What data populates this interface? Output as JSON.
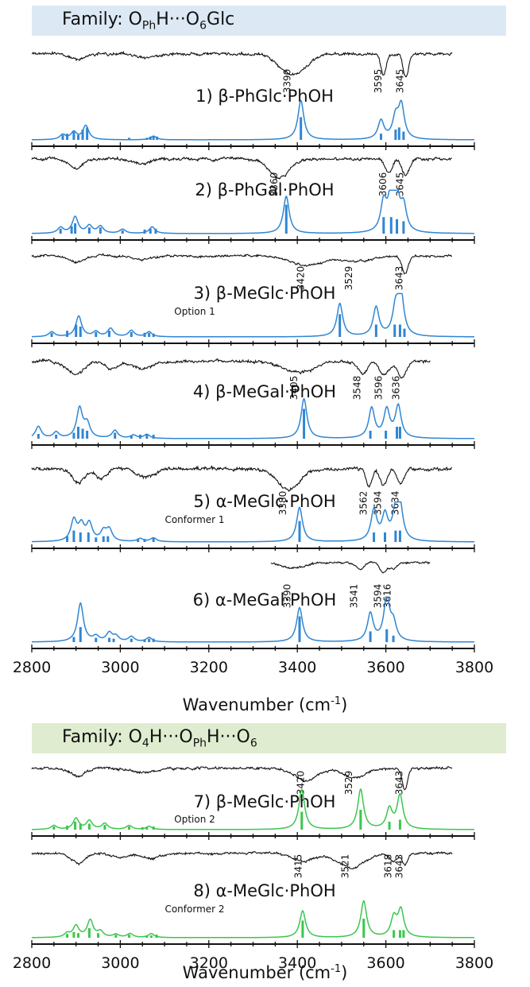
{
  "families": [
    {
      "label_prefix": "Family: ",
      "label_html": "O<sub>Ph</sub>H···O<sub>6</sub>Glc",
      "color": "#dce9f5"
    },
    {
      "label_prefix": "Family: ",
      "label_html": "O<sub>4</sub>H···O<sub>Ph</sub>H···O<sub>6</sub>",
      "color": "#dfeccf"
    }
  ],
  "axis": {
    "xlabel_text": "Wavenumber (cm",
    "xlabel_sup": "-1",
    "xlabel_close": ")",
    "xlim": [
      2800,
      3800
    ],
    "ticks": [
      2800,
      3000,
      3200,
      3400,
      3600,
      3800
    ]
  },
  "chart_data": {
    "type": "line",
    "xlabel": "Wavenumber (cm-1)",
    "xlim": [
      2800,
      3800
    ],
    "colors": {
      "experiment": "#111111",
      "family1_calc": "#2f86d4",
      "family2_calc": "#3cc64d"
    },
    "panels": [
      {
        "label": "1) β-PhGlc·PhOH",
        "note": "",
        "family": 1,
        "exp_range": [
          2800,
          3750
        ],
        "exp_bands": [
          [
            2900,
            0.25,
            15
          ],
          [
            3060,
            0.15,
            20
          ],
          [
            3390,
            0.85,
            30
          ],
          [
            3595,
            0.85,
            6
          ],
          [
            3645,
            1.0,
            6
          ]
        ],
        "exp_labels": [
          3390,
          3595,
          3645
        ],
        "calc_sticks": [
          [
            2870,
            0.12
          ],
          [
            2880,
            0.15
          ],
          [
            2895,
            0.2
          ],
          [
            2905,
            0.12
          ],
          [
            2915,
            0.25
          ],
          [
            2925,
            0.3
          ],
          [
            3020,
            0.05
          ],
          [
            3060,
            0.05
          ],
          [
            3068,
            0.08
          ],
          [
            3075,
            0.1
          ],
          [
            3083,
            0.08
          ],
          [
            3408,
            0.55
          ],
          [
            3589,
            0.15
          ],
          [
            3622,
            0.25
          ],
          [
            3630,
            0.3
          ],
          [
            3640,
            0.2
          ]
        ],
        "calc_peaks": [
          [
            2870,
            0.12
          ],
          [
            2895,
            0.18
          ],
          [
            2922,
            0.34
          ],
          [
            3075,
            0.09
          ],
          [
            3408,
            0.95
          ],
          [
            3589,
            0.45
          ],
          [
            3622,
            0.5
          ],
          [
            3635,
            0.8
          ]
        ]
      },
      {
        "label": "2) β-PhGal·PhOH",
        "note": "",
        "family": 1,
        "exp_range": [
          2800,
          3750
        ],
        "exp_bands": [
          [
            2900,
            0.4,
            15
          ],
          [
            3050,
            0.2,
            20
          ],
          [
            3360,
            0.8,
            22
          ],
          [
            3606,
            0.6,
            8
          ],
          [
            3645,
            0.7,
            8
          ]
        ],
        "exp_labels": [
          3360,
          3606,
          3645
        ],
        "calc_sticks": [
          [
            2865,
            0.12
          ],
          [
            2890,
            0.18
          ],
          [
            2898,
            0.25
          ],
          [
            2930,
            0.15
          ],
          [
            2955,
            0.15
          ],
          [
            3005,
            0.08
          ],
          [
            3055,
            0.1
          ],
          [
            3068,
            0.12
          ],
          [
            3080,
            0.12
          ],
          [
            3375,
            0.7
          ],
          [
            3595,
            0.4
          ],
          [
            3612,
            0.4
          ],
          [
            3625,
            0.35
          ],
          [
            3640,
            0.3
          ]
        ],
        "calc_peaks": [
          [
            2865,
            0.14
          ],
          [
            2898,
            0.4
          ],
          [
            2930,
            0.18
          ],
          [
            2955,
            0.17
          ],
          [
            3005,
            0.1
          ],
          [
            3072,
            0.16
          ],
          [
            3375,
            0.9
          ],
          [
            3595,
            0.7
          ],
          [
            3612,
            0.9
          ],
          [
            3625,
            0.75
          ],
          [
            3640,
            0.6
          ]
        ]
      },
      {
        "label": "3) β-MeGlc·PhOH",
        "note": "Option 1",
        "family": 1,
        "exp_range": [
          2800,
          3750
        ],
        "exp_bands": [
          [
            2900,
            0.35,
            18
          ],
          [
            3050,
            0.2,
            25
          ],
          [
            3420,
            0.55,
            35
          ],
          [
            3529,
            0.35,
            35
          ],
          [
            3643,
            1.0,
            7
          ]
        ],
        "exp_labels": [
          3420,
          3529,
          3643
        ],
        "calc_sticks": [
          [
            2845,
            0.1
          ],
          [
            2880,
            0.15
          ],
          [
            2900,
            0.3
          ],
          [
            2910,
            0.25
          ],
          [
            2945,
            0.12
          ],
          [
            2975,
            0.15
          ],
          [
            3025,
            0.12
          ],
          [
            3055,
            0.1
          ],
          [
            3065,
            0.1
          ],
          [
            3075,
            0.08
          ],
          [
            3496,
            0.55
          ],
          [
            3578,
            0.3
          ],
          [
            3620,
            0.3
          ],
          [
            3632,
            0.3
          ],
          [
            3642,
            0.2
          ]
        ],
        "calc_peaks": [
          [
            2845,
            0.12
          ],
          [
            2906,
            0.5
          ],
          [
            2945,
            0.12
          ],
          [
            2978,
            0.2
          ],
          [
            3025,
            0.15
          ],
          [
            3065,
            0.12
          ],
          [
            3496,
            0.8
          ],
          [
            3578,
            0.7
          ],
          [
            3622,
            0.65
          ],
          [
            3634,
            1.0
          ]
        ]
      },
      {
        "label": "4) β-MeGal·PhOH",
        "note": "",
        "family": 1,
        "exp_range": [
          2800,
          3700
        ],
        "exp_bands": [
          [
            2900,
            0.5,
            20
          ],
          [
            2980,
            0.3,
            15
          ],
          [
            3050,
            0.3,
            20
          ],
          [
            3405,
            0.45,
            35
          ],
          [
            3548,
            0.5,
            10
          ],
          [
            3596,
            0.55,
            10
          ],
          [
            3636,
            0.65,
            10
          ]
        ],
        "exp_labels": [
          3405,
          3548,
          3596,
          3636
        ],
        "calc_sticks": [
          [
            2815,
            0.12
          ],
          [
            2855,
            0.1
          ],
          [
            2895,
            0.15
          ],
          [
            2905,
            0.3
          ],
          [
            2915,
            0.25
          ],
          [
            2925,
            0.2
          ],
          [
            2988,
            0.15
          ],
          [
            3025,
            0.08
          ],
          [
            3045,
            0.1
          ],
          [
            3060,
            0.1
          ],
          [
            3075,
            0.1
          ],
          [
            3415,
            0.75
          ],
          [
            3565,
            0.2
          ],
          [
            3600,
            0.2
          ],
          [
            3625,
            0.3
          ],
          [
            3632,
            0.3
          ]
        ],
        "calc_peaks": [
          [
            2815,
            0.3
          ],
          [
            2855,
            0.15
          ],
          [
            2908,
            0.75
          ],
          [
            2925,
            0.35
          ],
          [
            2988,
            0.2
          ],
          [
            3030,
            0.08
          ],
          [
            3060,
            0.1
          ],
          [
            3415,
            1.0
          ],
          [
            3568,
            0.75
          ],
          [
            3602,
            0.7
          ],
          [
            3628,
            0.8
          ]
        ]
      },
      {
        "label": "5) α-MeGlc·PhOH",
        "note": "Conformer 1",
        "family": 1,
        "exp_range": [
          2800,
          3750
        ],
        "exp_bands": [
          [
            2905,
            0.45,
            15
          ],
          [
            2955,
            0.35,
            12
          ],
          [
            3060,
            0.3,
            20
          ],
          [
            3380,
            0.75,
            25
          ],
          [
            3562,
            0.6,
            7
          ],
          [
            3594,
            0.55,
            8
          ],
          [
            3634,
            0.55,
            8
          ]
        ],
        "exp_labels": [
          3380,
          3562,
          3594,
          3634
        ],
        "calc_sticks": [
          [
            2880,
            0.15
          ],
          [
            2895,
            0.3
          ],
          [
            2910,
            0.25
          ],
          [
            2928,
            0.25
          ],
          [
            2945,
            0.12
          ],
          [
            2962,
            0.15
          ],
          [
            2972,
            0.15
          ],
          [
            3040,
            0.08
          ],
          [
            3055,
            0.08
          ],
          [
            3075,
            0.1
          ],
          [
            3405,
            0.55
          ],
          [
            3573,
            0.25
          ],
          [
            3598,
            0.25
          ],
          [
            3622,
            0.3
          ],
          [
            3632,
            0.3
          ]
        ],
        "calc_peaks": [
          [
            2895,
            0.55
          ],
          [
            2912,
            0.4
          ],
          [
            2930,
            0.45
          ],
          [
            2962,
            0.25
          ],
          [
            2975,
            0.3
          ],
          [
            3045,
            0.08
          ],
          [
            3075,
            0.1
          ],
          [
            3405,
            0.9
          ],
          [
            3573,
            0.8
          ],
          [
            3598,
            0.65
          ],
          [
            3622,
            0.7
          ],
          [
            3632,
            0.85
          ]
        ]
      },
      {
        "label": "6) α-MeGal·PhOH",
        "note": "",
        "family": 1,
        "exp_range": [
          3340,
          3700
        ],
        "exp_bands": [
          [
            3390,
            0.3,
            25
          ],
          [
            3541,
            0.4,
            8
          ],
          [
            3594,
            0.6,
            8
          ],
          [
            3616,
            0.35,
            7
          ]
        ],
        "exp_labels": [
          3390,
          3541,
          3594,
          3616
        ],
        "calc_sticks": [
          [
            2895,
            0.12
          ],
          [
            2910,
            0.35
          ],
          [
            2945,
            0.1
          ],
          [
            2975,
            0.1
          ],
          [
            2985,
            0.08
          ],
          [
            3025,
            0.08
          ],
          [
            3055,
            0.06
          ],
          [
            3065,
            0.08
          ],
          [
            3075,
            0.08
          ],
          [
            3405,
            0.6
          ],
          [
            3565,
            0.25
          ],
          [
            3602,
            0.3
          ],
          [
            3617,
            0.15
          ]
        ],
        "calc_peaks": [
          [
            2910,
            0.9
          ],
          [
            2945,
            0.12
          ],
          [
            2975,
            0.2
          ],
          [
            2990,
            0.12
          ],
          [
            3025,
            0.12
          ],
          [
            3065,
            0.1
          ],
          [
            3405,
            0.8
          ],
          [
            3565,
            0.65
          ],
          [
            3602,
            1.0
          ],
          [
            3617,
            0.4
          ]
        ]
      },
      {
        "label": "7) β-MeGlc·PhOH",
        "note": "Option 2",
        "family": 2,
        "exp_range": [
          2800,
          3750
        ],
        "exp_bands": [
          [
            2905,
            0.35,
            15
          ],
          [
            3050,
            0.2,
            25
          ],
          [
            3420,
            0.55,
            25
          ],
          [
            3529,
            0.4,
            25
          ],
          [
            3643,
            0.95,
            6
          ]
        ],
        "exp_labels": [
          3420,
          3529,
          3643
        ],
        "calc_sticks": [
          [
            2850,
            0.08
          ],
          [
            2880,
            0.1
          ],
          [
            2898,
            0.2
          ],
          [
            2910,
            0.15
          ],
          [
            2930,
            0.15
          ],
          [
            2965,
            0.12
          ],
          [
            3020,
            0.08
          ],
          [
            3050,
            0.06
          ],
          [
            3060,
            0.06
          ],
          [
            3075,
            0.08
          ],
          [
            3410,
            0.45
          ],
          [
            3543,
            0.5
          ],
          [
            3608,
            0.2
          ],
          [
            3632,
            0.25
          ]
        ],
        "calc_peaks": [
          [
            2850,
            0.1
          ],
          [
            2900,
            0.28
          ],
          [
            2930,
            0.22
          ],
          [
            2965,
            0.15
          ],
          [
            3020,
            0.1
          ],
          [
            3065,
            0.08
          ],
          [
            3410,
            1.0
          ],
          [
            3543,
            1.0
          ],
          [
            3608,
            0.5
          ],
          [
            3632,
            0.85
          ]
        ]
      },
      {
        "label": "8) α-MeGlc·PhOH",
        "note": "Conformer 2",
        "family": 2,
        "exp_range": [
          2800,
          3750
        ],
        "exp_bands": [
          [
            2905,
            0.5,
            15
          ],
          [
            3000,
            0.2,
            20
          ],
          [
            3070,
            0.25,
            20
          ],
          [
            3415,
            0.4,
            25
          ],
          [
            3521,
            0.75,
            30
          ],
          [
            3618,
            0.4,
            8
          ],
          [
            3643,
            0.55,
            6
          ]
        ],
        "exp_labels": [
          3415,
          3521,
          3618,
          3643
        ],
        "calc_sticks": [
          [
            2880,
            0.1
          ],
          [
            2895,
            0.15
          ],
          [
            2905,
            0.12
          ],
          [
            2930,
            0.25
          ],
          [
            2950,
            0.12
          ],
          [
            2990,
            0.08
          ],
          [
            3020,
            0.08
          ],
          [
            3060,
            0.06
          ],
          [
            3070,
            0.06
          ],
          [
            3082,
            0.08
          ],
          [
            3412,
            0.45
          ],
          [
            3550,
            0.5
          ],
          [
            3618,
            0.2
          ],
          [
            3632,
            0.2
          ],
          [
            3640,
            0.2
          ]
        ],
        "calc_peaks": [
          [
            2880,
            0.1
          ],
          [
            2900,
            0.3
          ],
          [
            2932,
            0.45
          ],
          [
            2955,
            0.15
          ],
          [
            2990,
            0.08
          ],
          [
            3022,
            0.1
          ],
          [
            3070,
            0.1
          ],
          [
            3412,
            0.7
          ],
          [
            3550,
            0.95
          ],
          [
            3618,
            0.5
          ],
          [
            3634,
            0.7
          ]
        ]
      }
    ]
  }
}
